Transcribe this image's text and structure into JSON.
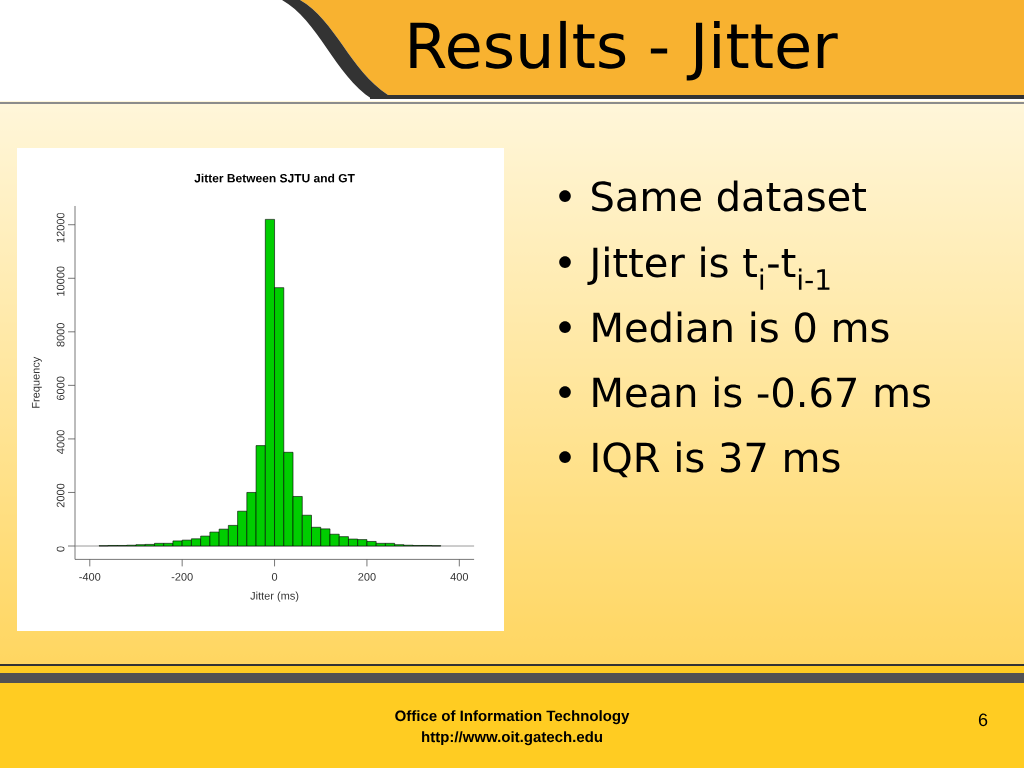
{
  "chart_data": {
    "type": "histogram",
    "title": "Jitter Between SJTU and GT",
    "xlabel": "Jitter (ms)",
    "ylabel": "Frequency",
    "bins": [
      -380,
      -360,
      -340,
      -320,
      -300,
      -280,
      -260,
      -240,
      -220,
      -200,
      -180,
      -160,
      -140,
      -120,
      -100,
      -80,
      -60,
      -40,
      -20,
      0,
      20,
      40,
      60,
      80,
      100,
      120,
      140,
      160,
      180,
      200,
      220,
      240,
      260,
      280,
      300,
      320,
      340,
      360
    ],
    "values": [
      10,
      20,
      20,
      30,
      50,
      60,
      100,
      100,
      190,
      220,
      270,
      370,
      520,
      630,
      770,
      1300,
      2000,
      3750,
      12200,
      9650,
      3500,
      1850,
      1150,
      700,
      640,
      440,
      350,
      260,
      240,
      170,
      100,
      100,
      50,
      30,
      20,
      20,
      10
    ],
    "color": "#00cd00",
    "xlim": [
      -432,
      432
    ],
    "ylim": [
      -500,
      12700
    ],
    "xticks": [
      -400,
      -200,
      0,
      200,
      400
    ],
    "yticks": [
      0,
      2000,
      4000,
      6000,
      8000,
      10000,
      12000
    ],
    "ref_lines": [
      {
        "axis": "y",
        "value": 0,
        "color": "#808080"
      }
    ],
    "annotations": [
      "Results - Jitter",
      "• Same dataset",
      "• Jitter is t$_{i}$-t$_{i-1}$",
      "• Median is 0 ms",
      "• Mean is -0.67 ms",
      "• IQR is 37 ms",
      "Office of Information Technology",
      "http://www.oit.gatech.edu",
      "6"
    ]
  }
}
